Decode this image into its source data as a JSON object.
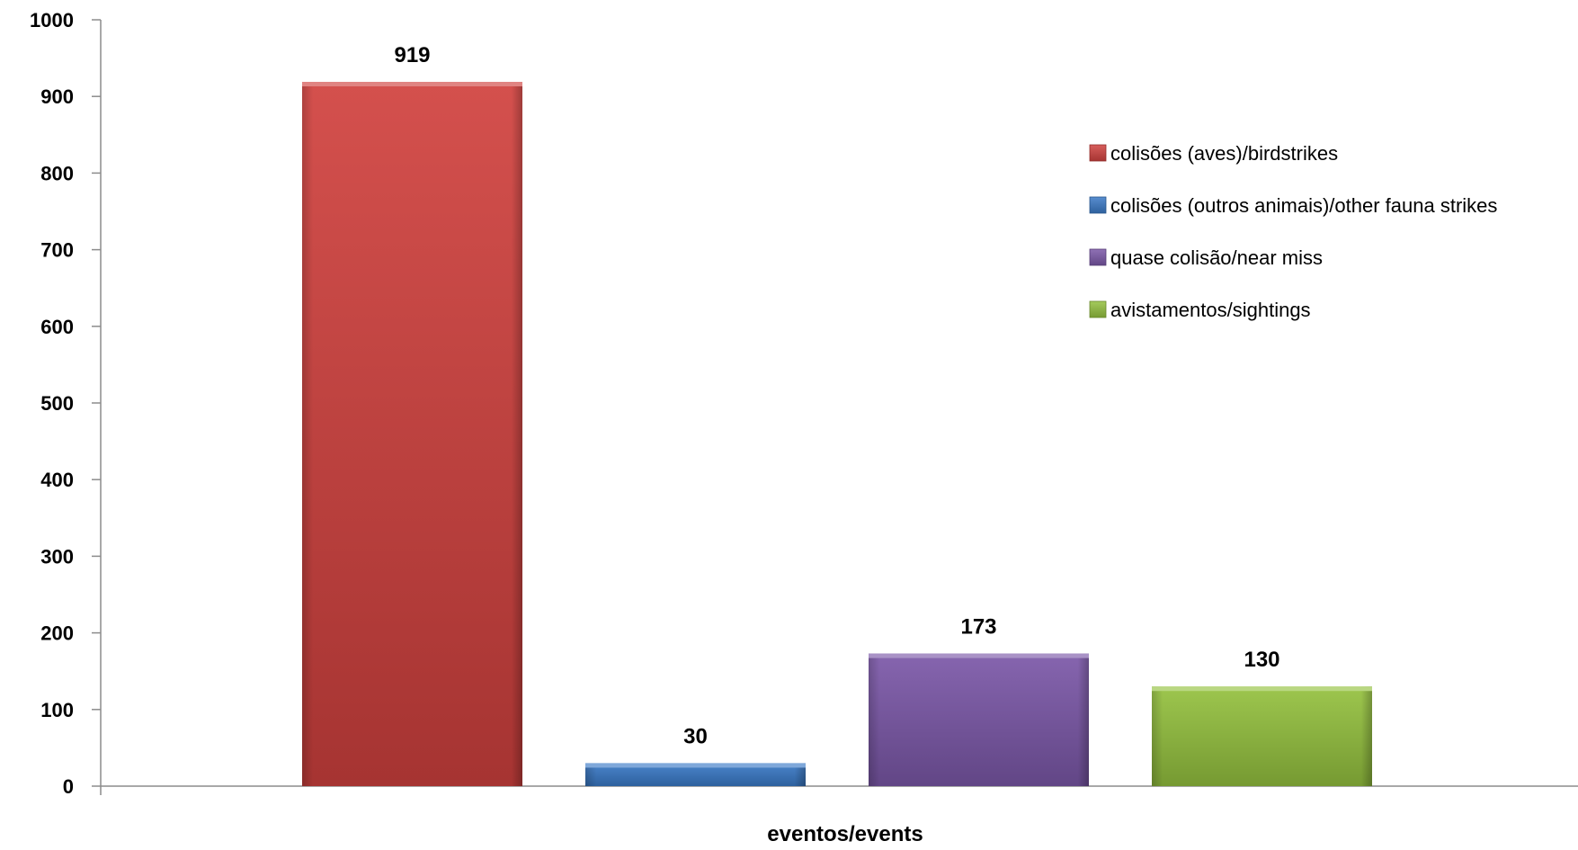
{
  "chart_data": {
    "type": "bar",
    "categories": [
      "eventos/events"
    ],
    "xlabel": "eventos/events",
    "ylabel": "",
    "ylim": [
      0,
      1000
    ],
    "yticks": [
      0,
      100,
      200,
      300,
      400,
      500,
      600,
      700,
      800,
      900,
      1000
    ],
    "grid": false,
    "legend_position": "right",
    "series": [
      {
        "name": "colisões (aves)/birdstrikes",
        "values": [
          919
        ],
        "color": "#d0413e",
        "label": "919"
      },
      {
        "name": "colisões (outros animais)/other fauna strikes",
        "values": [
          30
        ],
        "color": "#3a79c6",
        "label": "30"
      },
      {
        "name": "quase colisão/near miss",
        "values": [
          173
        ],
        "color": "#7b58a8",
        "label": "173"
      },
      {
        "name": "avistamentos/sightings",
        "values": [
          130
        ],
        "color": "#94c13f",
        "label": "130"
      }
    ]
  }
}
